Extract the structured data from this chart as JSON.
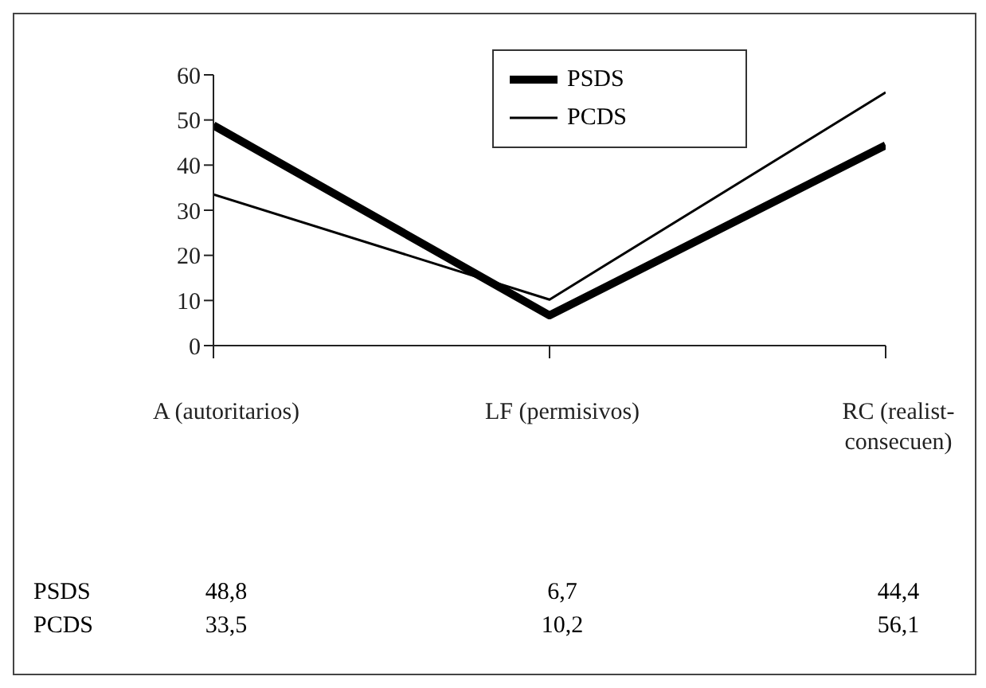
{
  "chart_data": {
    "type": "line",
    "categories": [
      "A (autoritarios)",
      "LF (permisivos)",
      "RC (realist-consecuen)"
    ],
    "series": [
      {
        "name": "PSDS",
        "color": "#000000",
        "values": [
          48.8,
          6.7,
          44.4
        ],
        "value_labels": [
          "48,8",
          "6,7",
          "44,4"
        ]
      },
      {
        "name": "PCDS",
        "color": "#000000",
        "values": [
          33.5,
          10.2,
          56.1
        ],
        "value_labels": [
          "33,5",
          "10,2",
          "56,1"
        ]
      }
    ],
    "ylim": [
      0,
      60
    ],
    "yticks": [
      0,
      10,
      20,
      30,
      40,
      50,
      60
    ],
    "grid": false,
    "legend": "top right",
    "marker": "none",
    "line_style": "solid"
  }
}
